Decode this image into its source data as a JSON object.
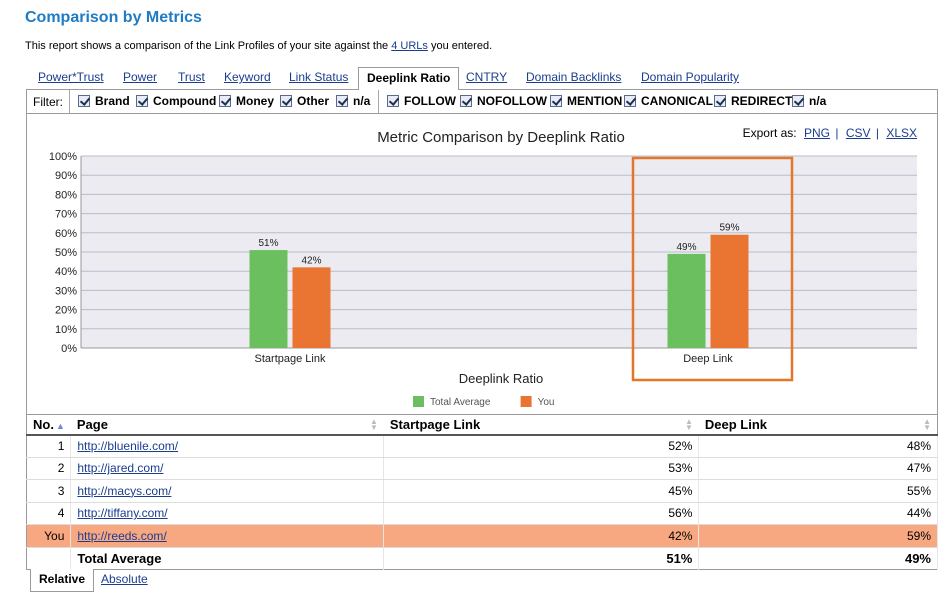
{
  "header": {
    "title": "Comparison by Metrics",
    "desc_before": "This report shows a comparison of the Link Profiles of your site against the ",
    "desc_link": "4 URLs",
    "desc_after": " you entered."
  },
  "tabs": [
    "Power*Trust",
    "Power",
    "Trust",
    "Keyword",
    "Link Status",
    "Deeplink Ratio",
    "CNTRY",
    "Domain Backlinks",
    "Domain Popularity"
  ],
  "active_tab": "Deeplink Ratio",
  "filter": {
    "label": "Filter:",
    "group1": [
      "Brand",
      "Compound",
      "Money",
      "Other",
      "n/a"
    ],
    "group2": [
      "FOLLOW",
      "NOFOLLOW",
      "MENTION",
      "CANONICAL",
      "REDIRECT",
      "n/a"
    ]
  },
  "export": {
    "label": "Export as:",
    "png": "PNG",
    "csv": "CSV",
    "xlsx": "XLSX",
    "sep": "|"
  },
  "chart_data": {
    "type": "bar",
    "title": "Metric Comparison by Deeplink Ratio",
    "xlabel": "Deeplink Ratio",
    "ylabel": "",
    "categories": [
      "Startpage Link",
      "Deep Link"
    ],
    "series": [
      {
        "name": "Total Average",
        "values": [
          51,
          49
        ],
        "color": "#6cbf5e"
      },
      {
        "name": "You",
        "values": [
          42,
          59
        ],
        "color": "#ea7431"
      }
    ],
    "data_labels": [
      [
        "51%",
        "49%"
      ],
      [
        "42%",
        "59%"
      ]
    ],
    "ylim": [
      0,
      100
    ],
    "yticks": [
      "0%",
      "10%",
      "20%",
      "30%",
      "40%",
      "50%",
      "60%",
      "70%",
      "80%",
      "90%",
      "100%"
    ],
    "grid": true,
    "legend": "bottom",
    "highlight_category": "Deep Link",
    "highlight_color": "#e4762a"
  },
  "table": {
    "columns": [
      "No.",
      "Page",
      "Startpage Link",
      "Deep Link"
    ],
    "rows": [
      {
        "no": "1",
        "page": "http://bluenile.com/",
        "start": "52%",
        "deep": "48%"
      },
      {
        "no": "2",
        "page": "http://jared.com/",
        "start": "53%",
        "deep": "47%"
      },
      {
        "no": "3",
        "page": "http://macys.com/",
        "start": "45%",
        "deep": "55%"
      },
      {
        "no": "4",
        "page": "http://tiffany.com/",
        "start": "56%",
        "deep": "44%"
      },
      {
        "no": "You",
        "page": "http://reeds.com/",
        "start": "42%",
        "deep": "59%",
        "you": true
      }
    ],
    "total": {
      "label": "Total Average",
      "start": "51%",
      "deep": "49%"
    }
  },
  "bottom_tabs": [
    "Relative",
    "Absolute"
  ]
}
